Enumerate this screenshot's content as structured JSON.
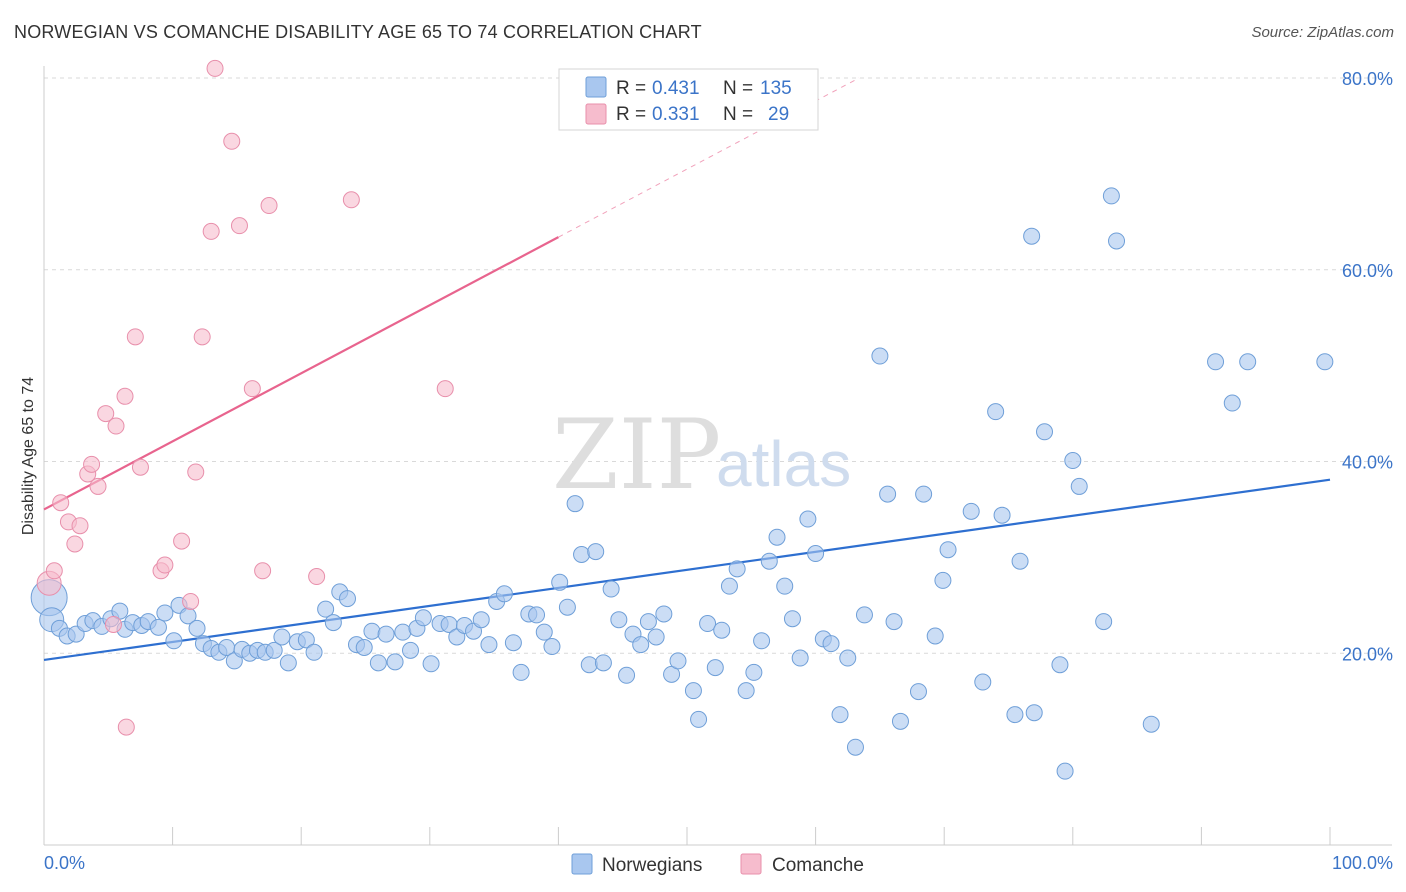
{
  "title": "NORWEGIAN VS COMANCHE DISABILITY AGE 65 TO 74 CORRELATION CHART",
  "source": "Source: ZipAtlas.com",
  "watermark": {
    "zip": "ZIP",
    "atlas": "atlas"
  },
  "colors": {
    "blue_fill": "#a9c7ef",
    "blue_stroke": "#6f9fd8",
    "blue_line": "#2e6fd0",
    "pink_fill": "#f6bccd",
    "pink_stroke": "#e88fab",
    "pink_line": "#e8648e",
    "tick_text": "#3b74c8",
    "grid": "#d9d9d9"
  },
  "legend": {
    "rows": [
      {
        "r_label": "R =",
        "r_value": "0.431",
        "n_label": "N =",
        "n_value": "135"
      },
      {
        "r_label": "R =",
        "r_value": "0.331",
        "n_label": "N =",
        "n_value": "29"
      }
    ]
  },
  "bottom_legend": [
    "Norwegians",
    "Comanche"
  ],
  "chart_data": {
    "type": "scatter",
    "title": "NORWEGIAN VS COMANCHE DISABILITY AGE 65 TO 74 CORRELATION CHART",
    "xlabel": "",
    "ylabel": "Disability Age 65 to 74",
    "xlim": [
      0,
      100
    ],
    "ylim": [
      0,
      80
    ],
    "x_tick_labels": [
      "0.0%",
      "100.0%"
    ],
    "y_ticks": [
      20,
      40,
      60,
      80
    ],
    "y_tick_labels": [
      "20.0%",
      "40.0%",
      "60.0%",
      "80.0%"
    ],
    "legend_position": "top-center",
    "series": [
      {
        "name": "Norwegians",
        "R": 0.431,
        "N": 135,
        "trend": {
          "x0": 0,
          "y0": 19.3,
          "x1": 100,
          "y1": 38.1,
          "solid_to_x": 100
        },
        "points": [
          [
            0.4,
            25.8,
            3
          ],
          [
            0.6,
            23.5,
            2
          ],
          [
            1.2,
            22.6,
            1
          ],
          [
            1.8,
            21.8,
            1
          ],
          [
            2.5,
            22.0,
            1
          ],
          [
            3.2,
            23.1,
            1
          ],
          [
            3.8,
            23.4,
            1
          ],
          [
            4.5,
            22.8,
            1
          ],
          [
            5.2,
            23.6,
            1
          ],
          [
            5.9,
            24.4,
            1
          ],
          [
            6.3,
            22.5,
            1
          ],
          [
            6.9,
            23.2,
            1
          ],
          [
            7.6,
            22.9,
            1
          ],
          [
            8.1,
            23.3,
            1
          ],
          [
            8.9,
            22.7,
            1
          ],
          [
            9.4,
            24.2,
            1
          ],
          [
            10.1,
            21.3,
            1
          ],
          [
            10.5,
            25.0,
            1
          ],
          [
            11.2,
            23.9,
            1
          ],
          [
            11.9,
            22.6,
            1
          ],
          [
            12.4,
            21.0,
            1
          ],
          [
            13.0,
            20.5,
            1
          ],
          [
            13.6,
            20.1,
            1
          ],
          [
            14.2,
            20.6,
            1
          ],
          [
            14.8,
            19.2,
            1
          ],
          [
            15.4,
            20.4,
            1
          ],
          [
            16.0,
            20.0,
            1
          ],
          [
            16.6,
            20.3,
            1
          ],
          [
            17.2,
            20.1,
            1
          ],
          [
            17.9,
            20.3,
            1
          ],
          [
            18.5,
            21.7,
            1
          ],
          [
            19.0,
            19.0,
            1
          ],
          [
            19.7,
            21.2,
            1
          ],
          [
            20.4,
            21.4,
            1
          ],
          [
            21.0,
            20.1,
            1
          ],
          [
            21.9,
            24.6,
            1
          ],
          [
            22.5,
            23.2,
            1
          ],
          [
            23.0,
            26.4,
            1
          ],
          [
            23.6,
            25.7,
            1
          ],
          [
            24.3,
            20.9,
            1
          ],
          [
            24.9,
            20.6,
            1
          ],
          [
            25.5,
            22.3,
            1
          ],
          [
            26.0,
            19.0,
            1
          ],
          [
            26.6,
            22.0,
            1
          ],
          [
            27.3,
            19.1,
            1
          ],
          [
            27.9,
            22.2,
            1
          ],
          [
            28.5,
            20.3,
            1
          ],
          [
            29.0,
            22.6,
            1
          ],
          [
            29.5,
            23.7,
            1
          ],
          [
            30.1,
            18.9,
            1
          ],
          [
            30.8,
            23.1,
            1
          ],
          [
            31.5,
            23.0,
            1
          ],
          [
            32.1,
            21.7,
            1
          ],
          [
            32.7,
            22.9,
            1
          ],
          [
            33.4,
            22.3,
            1
          ],
          [
            34.0,
            23.5,
            1
          ],
          [
            34.6,
            20.9,
            1
          ],
          [
            35.2,
            25.4,
            1
          ],
          [
            35.8,
            26.2,
            1
          ],
          [
            36.5,
            21.1,
            1
          ],
          [
            37.1,
            18.0,
            1
          ],
          [
            37.7,
            24.1,
            1
          ],
          [
            38.3,
            24.0,
            1
          ],
          [
            38.9,
            22.2,
            1
          ],
          [
            39.5,
            20.7,
            1
          ],
          [
            40.1,
            27.4,
            1
          ],
          [
            40.7,
            24.8,
            1
          ],
          [
            41.3,
            35.6,
            1
          ],
          [
            41.8,
            30.3,
            1
          ],
          [
            42.4,
            18.8,
            1
          ],
          [
            42.9,
            30.6,
            1
          ],
          [
            43.5,
            19.0,
            1
          ],
          [
            44.1,
            26.7,
            1
          ],
          [
            44.7,
            23.5,
            1
          ],
          [
            45.3,
            17.7,
            1
          ],
          [
            45.8,
            22.0,
            1
          ],
          [
            46.4,
            20.9,
            1
          ],
          [
            47.0,
            23.3,
            1
          ],
          [
            47.6,
            21.7,
            1
          ],
          [
            48.2,
            24.1,
            1
          ],
          [
            48.8,
            17.8,
            1
          ],
          [
            49.3,
            19.2,
            1
          ],
          [
            50.5,
            16.1,
            1
          ],
          [
            50.9,
            13.1,
            1
          ],
          [
            51.6,
            23.1,
            1
          ],
          [
            52.2,
            18.5,
            1
          ],
          [
            52.7,
            22.4,
            1
          ],
          [
            53.3,
            27.0,
            1
          ],
          [
            53.9,
            28.8,
            1
          ],
          [
            54.6,
            16.1,
            1
          ],
          [
            55.2,
            18.0,
            1
          ],
          [
            55.8,
            21.3,
            1
          ],
          [
            56.4,
            29.6,
            1
          ],
          [
            57.0,
            32.1,
            1
          ],
          [
            57.6,
            27.0,
            1
          ],
          [
            58.2,
            23.6,
            1
          ],
          [
            58.8,
            19.5,
            1
          ],
          [
            59.4,
            34.0,
            1
          ],
          [
            60.0,
            30.4,
            1
          ],
          [
            60.6,
            21.5,
            1
          ],
          [
            61.2,
            21.0,
            1
          ],
          [
            61.9,
            13.6,
            1
          ],
          [
            62.5,
            19.5,
            1
          ],
          [
            63.1,
            10.2,
            1
          ],
          [
            63.8,
            24.0,
            1
          ],
          [
            65.0,
            51.0,
            1
          ],
          [
            65.6,
            36.6,
            1
          ],
          [
            66.1,
            23.3,
            1
          ],
          [
            66.6,
            12.9,
            1
          ],
          [
            68.0,
            16.0,
            1
          ],
          [
            68.4,
            36.6,
            1
          ],
          [
            69.3,
            21.8,
            1
          ],
          [
            69.9,
            27.6,
            1
          ],
          [
            70.3,
            30.8,
            1
          ],
          [
            72.1,
            34.8,
            1
          ],
          [
            73.0,
            17.0,
            1
          ],
          [
            74.0,
            45.2,
            1
          ],
          [
            74.5,
            34.4,
            1
          ],
          [
            75.5,
            13.6,
            1
          ],
          [
            75.9,
            29.6,
            1
          ],
          [
            76.8,
            63.5,
            1
          ],
          [
            77.0,
            13.8,
            1
          ],
          [
            77.8,
            43.1,
            1
          ],
          [
            79.0,
            18.8,
            1
          ],
          [
            79.4,
            7.7,
            1
          ],
          [
            80.0,
            40.1,
            1
          ],
          [
            80.5,
            37.4,
            1
          ],
          [
            82.4,
            23.3,
            1
          ],
          [
            83.0,
            67.7,
            1
          ],
          [
            83.4,
            63.0,
            1
          ],
          [
            86.1,
            12.6,
            1
          ],
          [
            91.1,
            50.4,
            1
          ],
          [
            92.4,
            46.1,
            1
          ],
          [
            93.6,
            50.4,
            1
          ],
          [
            99.6,
            50.4,
            1
          ]
        ]
      },
      {
        "name": "Comanche",
        "R": 0.331,
        "N": 29,
        "trend": {
          "x0": 0,
          "y0": 35.0,
          "x1": 100,
          "y1": 106.0,
          "solid_to_x": 40
        },
        "points": [
          [
            0.4,
            27.3,
            2
          ],
          [
            0.8,
            28.6,
            1
          ],
          [
            1.3,
            35.7,
            1
          ],
          [
            1.9,
            33.7,
            1
          ],
          [
            2.4,
            31.4,
            1
          ],
          [
            2.8,
            33.3,
            1
          ],
          [
            3.4,
            38.7,
            1
          ],
          [
            3.7,
            39.7,
            1
          ],
          [
            4.2,
            37.4,
            1
          ],
          [
            4.8,
            45.0,
            1
          ],
          [
            5.4,
            23.0,
            1
          ],
          [
            5.6,
            43.7,
            1
          ],
          [
            6.3,
            46.8,
            1
          ],
          [
            6.4,
            12.3,
            1
          ],
          [
            7.1,
            53.0,
            1
          ],
          [
            7.5,
            39.4,
            1
          ],
          [
            9.1,
            28.6,
            1
          ],
          [
            9.4,
            29.2,
            1
          ],
          [
            10.7,
            31.7,
            1
          ],
          [
            11.4,
            25.4,
            1
          ],
          [
            11.8,
            38.9,
            1
          ],
          [
            12.3,
            53.0,
            1
          ],
          [
            13.0,
            64.0,
            1
          ],
          [
            13.3,
            81.0,
            1
          ],
          [
            14.6,
            73.4,
            1
          ],
          [
            15.2,
            64.6,
            1
          ],
          [
            16.2,
            47.6,
            1
          ],
          [
            17.0,
            28.6,
            1
          ],
          [
            17.5,
            66.7,
            1
          ],
          [
            21.2,
            28.0,
            1
          ],
          [
            23.9,
            67.3,
            1
          ],
          [
            31.2,
            47.6,
            1
          ]
        ]
      }
    ]
  }
}
